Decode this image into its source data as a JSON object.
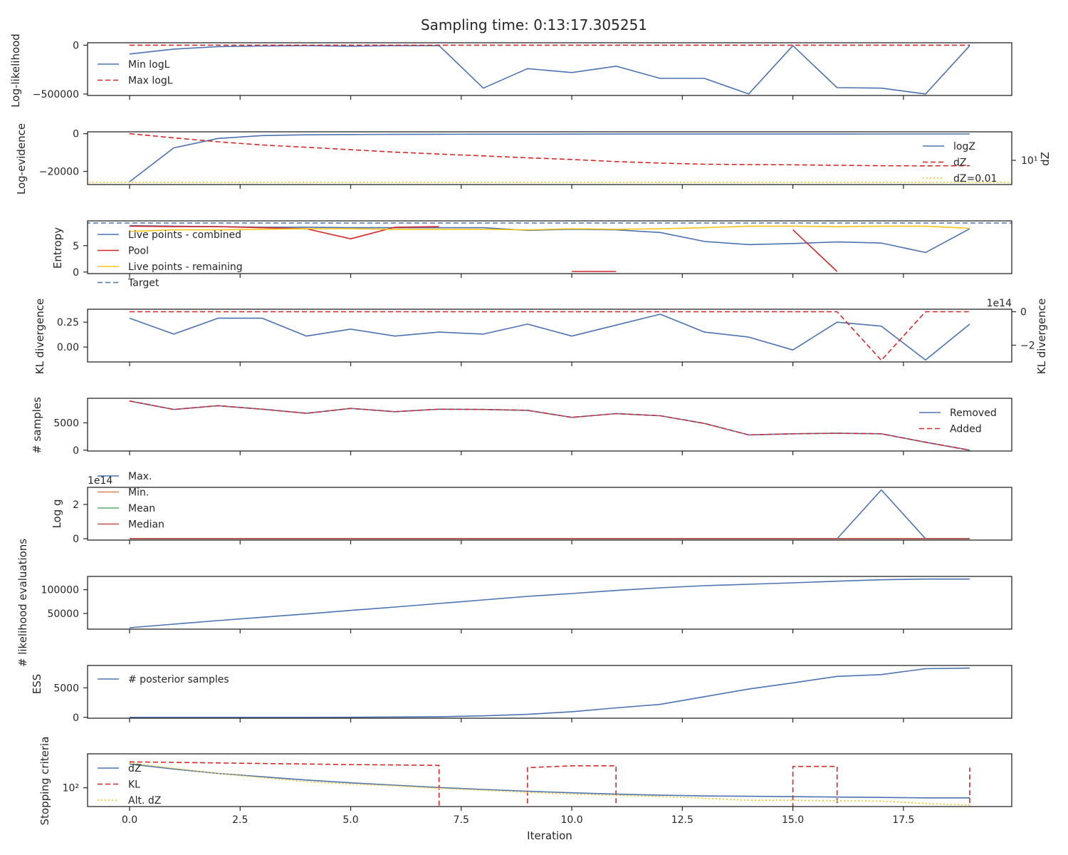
{
  "figure_title": "Sampling time: 0:13:17.305251",
  "colors": {
    "blue": "#4c72b0",
    "red": "#d62728",
    "yellow": "#f5c518",
    "orange": "#dd8452",
    "green": "#55a868",
    "brick": "#c44e52",
    "axis": "#262626"
  },
  "chart_data": [
    {
      "type": "line",
      "id": "loglikelihood",
      "ylabel": "Log-likelihood",
      "yticks": [
        0,
        -500000
      ],
      "ytick_labels": [
        "0",
        "−500000"
      ],
      "ylim": [
        -515000,
        25000
      ],
      "legend_position": "upper-left",
      "series": [
        {
          "name": "Min logL",
          "color": "blue",
          "dash": "solid",
          "x": [
            0,
            1,
            2,
            3,
            4,
            5,
            6,
            7,
            8,
            9,
            10,
            11,
            12,
            13,
            14,
            15,
            16,
            17,
            18,
            19
          ],
          "y": [
            -90000,
            -40000,
            -15000,
            -8000,
            -5000,
            -10000,
            -5000,
            -5000,
            -440000,
            -240000,
            -280000,
            -215000,
            -340000,
            -340000,
            -500000,
            -5000,
            -435000,
            -440000,
            -500000,
            -5000
          ]
        },
        {
          "name": "Max logL",
          "color": "red",
          "dash": "dashed",
          "x": [
            0,
            19
          ],
          "y": [
            0,
            0
          ]
        }
      ]
    },
    {
      "type": "line",
      "id": "logevidence",
      "ylabel": "Log-evidence",
      "ylabel_right": "dZ",
      "yticks": [
        0,
        -20000
      ],
      "ytick_labels": [
        "0",
        "−20000"
      ],
      "right_tick_label": "10¹",
      "ylim": [
        -27000,
        1000
      ],
      "legend_position": "right",
      "series": [
        {
          "name": "logZ",
          "color": "blue",
          "dash": "solid",
          "x": [
            0,
            1,
            2,
            3,
            4,
            5,
            6,
            7,
            8,
            9,
            10,
            11,
            12,
            13,
            14,
            15,
            16,
            17,
            18,
            19
          ],
          "y": [
            -25500,
            -7500,
            -2500,
            -1000,
            -600,
            -450,
            -350,
            -300,
            -260,
            -230,
            -210,
            -190,
            -180,
            -170,
            -165,
            -160,
            -155,
            -150,
            -145,
            -140
          ]
        },
        {
          "name": "dZ",
          "color": "red",
          "dash": "dashed",
          "x": [
            0,
            1,
            2,
            3,
            4,
            5,
            6,
            7,
            8,
            9,
            10,
            11,
            12,
            13,
            14,
            15,
            16,
            17,
            18,
            19
          ],
          "y": [
            0,
            -2200,
            -4300,
            -6000,
            -7200,
            -8500,
            -9800,
            -10800,
            -11800,
            -12800,
            -13700,
            -14800,
            -15600,
            -16200,
            -16400,
            -16500,
            -16800,
            -17000,
            -17100,
            -17000
          ]
        },
        {
          "name": "dZ=0.01",
          "color": "yellow",
          "dash": "dotted",
          "x": [
            -1,
            20.5
          ],
          "y": [
            -25800,
            -25800
          ]
        }
      ]
    },
    {
      "type": "line",
      "id": "entropy",
      "ylabel": "Entropy",
      "yticks": [
        0,
        5
      ],
      "ytick_labels": [
        "0",
        "5"
      ],
      "ylim": [
        -0.3,
        9.7
      ],
      "legend_position": "upper-left",
      "series": [
        {
          "name": "Live points - combined",
          "color": "blue",
          "dash": "solid",
          "x": [
            0,
            1,
            2,
            3,
            4,
            5,
            6,
            7,
            8,
            9,
            10,
            11,
            12,
            13,
            14,
            15,
            16,
            17,
            18,
            19
          ],
          "y": [
            8.8,
            8.7,
            8.6,
            8.5,
            8.5,
            8.4,
            8.4,
            8.4,
            8.4,
            7.9,
            8.1,
            8.0,
            7.5,
            5.8,
            5.2,
            5.4,
            5.7,
            5.5,
            3.7,
            8.2
          ]
        },
        {
          "name": "Pool",
          "color": "red",
          "dash": "solid",
          "x": [
            0,
            1,
            2,
            3,
            4,
            5,
            6,
            7
          ],
          "y": [
            8.7,
            8.6,
            8.6,
            8.4,
            8.2,
            6.3,
            8.5,
            8.6
          ]
        },
        {
          "name": "Pool",
          "color": "red",
          "dash": "solid",
          "legend": false,
          "x": [
            10,
            11
          ],
          "y": [
            0.1,
            0.1
          ]
        },
        {
          "name": "Pool",
          "color": "red",
          "dash": "solid",
          "legend": false,
          "x": [
            15,
            16
          ],
          "y": [
            8.0,
            0.1
          ]
        },
        {
          "name": "Live points - remaining",
          "color": "yellow",
          "dash": "solid",
          "x": [
            0,
            1,
            2,
            3,
            4,
            5,
            6,
            7,
            8,
            9,
            10,
            11,
            12,
            13,
            14,
            15,
            16,
            17,
            18,
            19
          ],
          "y": [
            7.7,
            8.0,
            8.0,
            8.1,
            8.2,
            8.2,
            8.1,
            8.1,
            8.1,
            8.0,
            8.2,
            8.1,
            8.2,
            8.4,
            8.7,
            8.7,
            8.6,
            8.7,
            8.7,
            8.3
          ]
        },
        {
          "name": "Target",
          "color": "blue",
          "dash": "dashed",
          "x": [
            -1,
            20.5
          ],
          "y": [
            9.3,
            9.3
          ]
        }
      ]
    },
    {
      "type": "line",
      "id": "kldivergence",
      "ylabel": "KL divergence",
      "ylabel_right": "KL divergence",
      "yticks": [
        0.25,
        0.0
      ],
      "ytick_labels": [
        "0.25",
        "0.00"
      ],
      "ylim": [
        -0.15,
        0.38
      ],
      "right_yticks": [
        0,
        -2
      ],
      "right_ytick_labels": [
        "0",
        "−2"
      ],
      "right_ylim": [
        -3.0,
        0.15
      ],
      "right_offset_label": "1e14",
      "series": [
        {
          "name": "",
          "color": "blue",
          "dash": "solid",
          "axis": "left",
          "x": [
            0,
            1,
            2,
            3,
            4,
            5,
            6,
            7,
            8,
            9,
            10,
            11,
            12,
            13,
            14,
            15,
            16,
            17,
            18,
            19
          ],
          "y": [
            0.29,
            0.13,
            0.29,
            0.29,
            0.11,
            0.18,
            0.11,
            0.15,
            0.13,
            0.23,
            0.11,
            0.22,
            0.33,
            0.15,
            0.1,
            -0.03,
            0.25,
            0.21,
            -0.13,
            0.23
          ]
        },
        {
          "name": "",
          "color": "red",
          "dash": "dashed",
          "axis": "right",
          "x": [
            0,
            1,
            2,
            3,
            4,
            5,
            6,
            7,
            8,
            9,
            10,
            11,
            12,
            13,
            14,
            15,
            16,
            17,
            18,
            19
          ],
          "y": [
            0,
            0,
            0,
            0,
            0,
            0,
            0,
            0,
            0,
            0,
            0,
            0,
            0,
            0,
            0,
            0,
            0,
            -2.9,
            0,
            0
          ]
        }
      ]
    },
    {
      "type": "line",
      "id": "samples",
      "ylabel": "# samples",
      "yticks": [
        5000,
        0
      ],
      "ytick_labels": [
        "5000",
        "0"
      ],
      "ylim": [
        -150,
        9500
      ],
      "legend_position": "right",
      "series": [
        {
          "name": "Removed",
          "color": "blue",
          "dash": "solid",
          "x": [
            0,
            1,
            2,
            3,
            4,
            5,
            6,
            7,
            8,
            9,
            10,
            11,
            12,
            13,
            14,
            15,
            16,
            17,
            18,
            19
          ],
          "y": [
            9000,
            7450,
            8150,
            7500,
            6750,
            7650,
            7050,
            7500,
            7450,
            7300,
            6000,
            6700,
            6300,
            4900,
            2800,
            3000,
            3100,
            3000,
            1450,
            0
          ]
        },
        {
          "name": "Added",
          "color": "red",
          "dash": "dashed",
          "x": [
            0,
            1,
            2,
            3,
            4,
            5,
            6,
            7,
            8,
            9,
            10,
            11,
            12,
            13,
            14,
            15,
            16,
            17,
            18,
            19
          ],
          "y": [
            9000,
            7450,
            8150,
            7500,
            6750,
            7650,
            7050,
            7500,
            7450,
            7300,
            6000,
            6700,
            6300,
            4900,
            2800,
            3000,
            3100,
            3000,
            1450,
            0
          ]
        }
      ]
    },
    {
      "type": "line",
      "id": "logg",
      "ylabel": "Log g",
      "yticks": [
        2,
        0
      ],
      "ytick_labels": [
        "2",
        "0"
      ],
      "ylim": [
        -0.08,
        3.0
      ],
      "offset_label": "1e14",
      "legend_position": "upper-left",
      "series": [
        {
          "name": "Max.",
          "color": "blue",
          "dash": "solid",
          "x": [
            0,
            16,
            17,
            18,
            19
          ],
          "y": [
            0,
            0,
            2.85,
            0,
            0
          ]
        },
        {
          "name": "Min.",
          "color": "orange",
          "dash": "solid",
          "x": [
            0,
            19
          ],
          "y": [
            0,
            0
          ]
        },
        {
          "name": "Mean",
          "color": "green",
          "dash": "solid",
          "x": [
            0,
            19
          ],
          "y": [
            0,
            0
          ]
        },
        {
          "name": "Median",
          "color": "brick",
          "dash": "solid",
          "x": [
            0,
            19
          ],
          "y": [
            0,
            0
          ]
        }
      ]
    },
    {
      "type": "line",
      "id": "likelihood_evaluations",
      "ylabel": "# likelihood evaluations",
      "yticks": [
        100000,
        50000
      ],
      "ytick_labels": [
        "100000",
        "50000"
      ],
      "ylim": [
        17000,
        128000
      ],
      "series": [
        {
          "name": "",
          "color": "blue",
          "dash": "solid",
          "x": [
            0,
            1,
            2,
            3,
            4,
            5,
            6,
            7,
            8,
            9,
            10,
            11,
            12,
            13,
            14,
            15,
            16,
            17,
            18,
            19
          ],
          "y": [
            20000,
            27500,
            35000,
            42000,
            49000,
            56500,
            63500,
            71000,
            78500,
            86000,
            92000,
            98500,
            104000,
            108500,
            111500,
            114500,
            118000,
            121000,
            122500,
            122500
          ]
        }
      ]
    },
    {
      "type": "line",
      "id": "ess",
      "ylabel": "ESS",
      "yticks": [
        5000,
        0
      ],
      "ytick_labels": [
        "5000",
        "0"
      ],
      "ylim": [
        -150,
        8800
      ],
      "legend_position": "upper-left",
      "series": [
        {
          "name": "# posterior samples",
          "color": "blue",
          "dash": "solid",
          "x": [
            0,
            1,
            2,
            3,
            4,
            5,
            6,
            7,
            8,
            9,
            10,
            11,
            12,
            13,
            14,
            15,
            16,
            17,
            18,
            19
          ],
          "y": [
            0,
            0,
            0,
            0,
            0,
            10,
            50,
            100,
            250,
            500,
            950,
            1600,
            2200,
            3500,
            4800,
            5850,
            6950,
            7250,
            8250,
            8350
          ]
        }
      ]
    },
    {
      "type": "line",
      "id": "stopping_criteria",
      "ylabel": "Stopping criteria",
      "xlabel": "Iteration",
      "yscale": "log",
      "yticks": [
        100
      ],
      "ytick_labels": [
        "10²"
      ],
      "ylim": [
        50,
        350
      ],
      "xticks": [
        0.0,
        2.5,
        5.0,
        7.5,
        10.0,
        12.5,
        15.0,
        17.5
      ],
      "xtick_labels": [
        "0.0",
        "2.5",
        "5.0",
        "7.5",
        "10.0",
        "12.5",
        "15.0",
        "17.5"
      ],
      "xlim": [
        -0.95,
        19.95
      ],
      "legend_position": "lower-left",
      "series": [
        {
          "name": "dZ",
          "color": "blue",
          "dash": "solid",
          "x": [
            0,
            1,
            2,
            3,
            4,
            5,
            6,
            7,
            8,
            9,
            10,
            11,
            12,
            13,
            14,
            15,
            16,
            17,
            18,
            19
          ],
          "y": [
            240,
            200,
            170,
            150,
            133,
            120,
            110,
            101,
            94,
            88,
            83,
            79,
            76,
            74,
            73,
            72,
            71,
            70,
            69,
            69
          ]
        },
        {
          "name": "KL",
          "color": "red",
          "dash": "dashed",
          "x": [
            0,
            1,
            2,
            3,
            4,
            5,
            6,
            7,
            7,
            9,
            9,
            10,
            11,
            11,
            15,
            15,
            16,
            16,
            19,
            19
          ],
          "y": [
            260,
            255,
            250,
            245,
            240,
            235,
            232,
            228,
            40,
            40,
            210,
            225,
            225,
            40,
            40,
            220,
            220,
            40,
            40,
            210
          ]
        },
        {
          "name": "Alt. dZ",
          "color": "yellow",
          "dash": "dotted",
          "x": [
            0,
            1,
            2,
            3,
            4,
            5,
            6,
            7,
            8,
            9,
            10,
            11,
            12,
            13,
            14,
            15,
            16,
            17,
            18,
            19
          ],
          "y": [
            250,
            205,
            170,
            145,
            125,
            115,
            107,
            98,
            91,
            84,
            79,
            76,
            72,
            68,
            63,
            63,
            62,
            61,
            56,
            53
          ]
        }
      ]
    }
  ]
}
